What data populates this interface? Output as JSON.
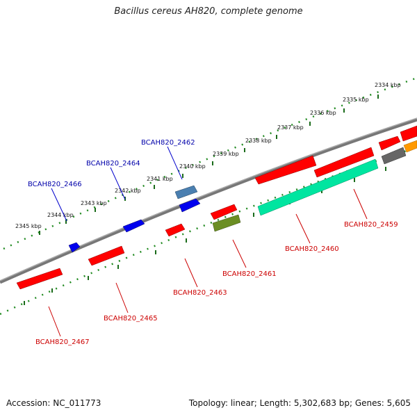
{
  "title": "Bacillus cereus AH820, complete genome",
  "footer": {
    "accession": "Accession: NC_011773",
    "summary": "Topology: linear; Length: 5,302,683 bp; Genes: 5,605"
  },
  "colors": {
    "red": "#ff0000",
    "blue": "#0000ee",
    "steelblue": "#4a7fb0",
    "olive": "#6b8e23",
    "aqua": "#00e5a0",
    "gray": "#666666",
    "orange": "#ff9900",
    "scale": "#228b22",
    "red_label": "#cc0000",
    "blue_label": "#0000aa"
  },
  "ticks": [
    "2345 kbp",
    "2344 kbp",
    "2343 kbp",
    "2342 kbp",
    "2341 kbp",
    "2340 kbp",
    "2339 kbp",
    "2338 kbp",
    "2337 kbp",
    "2336 kbp",
    "2335 kbp",
    "2334 kbp"
  ],
  "gene_labels": {
    "g2459": "BCAH820_2459",
    "g2460": "BCAH820_2460",
    "g2461": "BCAH820_2461",
    "g2462": "BCAH820_2462",
    "g2463": "BCAH820_2463",
    "g2464": "BCAH820_2464",
    "g2465": "BCAH820_2465",
    "g2466": "BCAH820_2466",
    "g2467": "BCAH820_2467"
  }
}
